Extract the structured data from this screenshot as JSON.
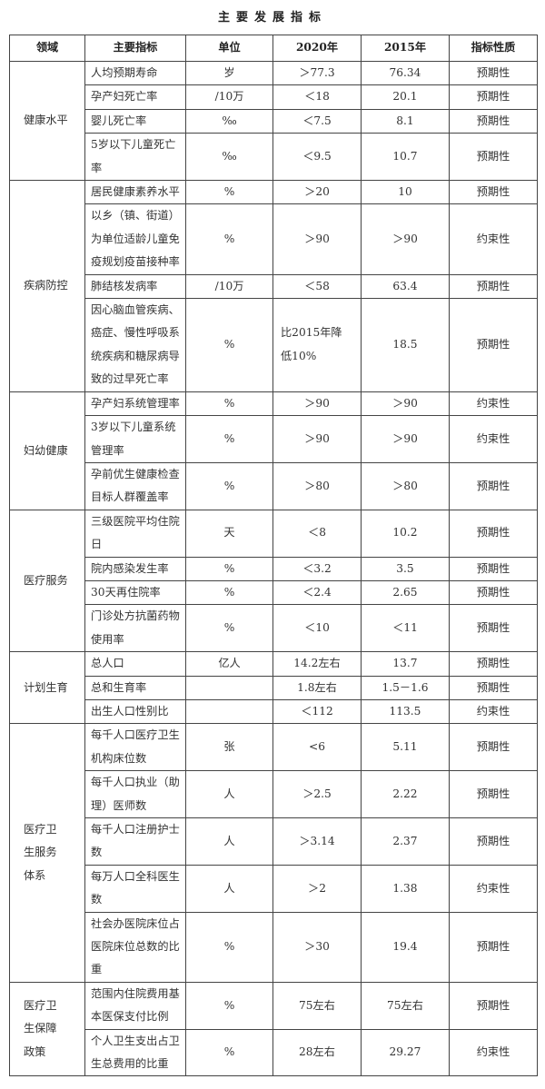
{
  "title": "主要发展指标",
  "headers": [
    "领域",
    "主要指标",
    "单位",
    "2020年",
    "2015年",
    "指标性质"
  ],
  "groups": [
    {
      "domain": "健康水平",
      "rows": [
        {
          "indicator": "人均预期寿命",
          "unit": "岁",
          "v2020": "＞77.3",
          "v2015": "76.34",
          "nature": "预期性"
        },
        {
          "indicator": "孕产妇死亡率",
          "unit": "/10万",
          "v2020": "＜18",
          "v2015": "20.1",
          "nature": "预期性"
        },
        {
          "indicator": "婴儿死亡率",
          "unit": "‰",
          "v2020": "＜7.5",
          "v2015": "8.1",
          "nature": "预期性"
        },
        {
          "indicator": "5岁以下儿童死亡率",
          "unit": "‰",
          "v2020": "＜9.5",
          "v2015": "10.7",
          "nature": "预期性"
        }
      ]
    },
    {
      "domain": "疾病防控",
      "rows": [
        {
          "indicator": "居民健康素养水平",
          "unit": "%",
          "v2020": "＞20",
          "v2015": "10",
          "nature": "预期性"
        },
        {
          "indicator": "以乡（镇、街道）为单位适龄儿童免疫规划疫苗接种率",
          "unit": "%",
          "v2020": "＞90",
          "v2015": "＞90",
          "nature": "约束性"
        },
        {
          "indicator": "肺结核发病率",
          "unit": "/10万",
          "v2020": "＜58",
          "v2015": "63.4",
          "nature": "预期性"
        },
        {
          "indicator": "因心脑血管疾病、癌症、慢性呼吸系统疾病和糖尿病导致的过早死亡率",
          "unit": "%",
          "v2020": "比2015年降低10%",
          "v2015": "18.5",
          "nature": "预期性"
        }
      ]
    },
    {
      "domain": "妇幼健康",
      "rows": [
        {
          "indicator": "孕产妇系统管理率",
          "unit": "%",
          "v2020": "＞90",
          "v2015": "＞90",
          "nature": "约束性"
        },
        {
          "indicator": "3岁以下儿童系统管理率",
          "unit": "%",
          "v2020": "＞90",
          "v2015": "＞90",
          "nature": "约束性"
        },
        {
          "indicator": "孕前优生健康检查目标人群覆盖率",
          "unit": "%",
          "v2020": "＞80",
          "v2015": "＞80",
          "nature": "预期性"
        }
      ]
    },
    {
      "domain": "医疗服务",
      "rows": [
        {
          "indicator": "三级医院平均住院日",
          "unit": "天",
          "v2020": "＜8",
          "v2015": "10.2",
          "nature": "预期性"
        },
        {
          "indicator": "院内感染发生率",
          "unit": "%",
          "v2020": "＜3.2",
          "v2015": "3.5",
          "nature": "预期性"
        },
        {
          "indicator": "30天再住院率",
          "unit": "%",
          "v2020": "＜2.4",
          "v2015": "2.65",
          "nature": "预期性"
        },
        {
          "indicator": "门诊处方抗菌药物使用率",
          "unit": "%",
          "v2020": "＜10",
          "v2015": "＜11",
          "nature": "预期性"
        }
      ]
    },
    {
      "domain": "计划生育",
      "rows": [
        {
          "indicator": "总人口",
          "unit": "亿人",
          "v2020": "14.2左右",
          "v2015": "13.7",
          "nature": "预期性"
        },
        {
          "indicator": "总和生育率",
          "unit": "",
          "v2020": "1.8左右",
          "v2015": "1.5－1.6",
          "nature": "预期性"
        },
        {
          "indicator": "出生人口性别比",
          "unit": "",
          "v2020": "＜112",
          "v2015": "113.5",
          "nature": "约束性"
        }
      ]
    },
    {
      "domain": "医疗卫生服务体系",
      "rows": [
        {
          "indicator": "每千人口医疗卫生机构床位数",
          "unit": "张",
          "v2020": "<6",
          "v2015": "5.11",
          "nature": "预期性"
        },
        {
          "indicator": "每千人口执业（助理）医师数",
          "unit": "人",
          "v2020": "＞2.5",
          "v2015": "2.22",
          "nature": "预期性"
        },
        {
          "indicator": "每千人口注册护士数",
          "unit": "人",
          "v2020": "＞3.14",
          "v2015": "2.37",
          "nature": "预期性"
        },
        {
          "indicator": "每万人口全科医生数",
          "unit": "人",
          "v2020": "＞2",
          "v2015": "1.38",
          "nature": "约束性"
        },
        {
          "indicator": "社会办医院床位占医院床位总数的比重",
          "unit": "%",
          "v2020": "＞30",
          "v2015": "19.4",
          "nature": "预期性"
        }
      ]
    },
    {
      "domain": "医疗卫生保障政策",
      "rows": [
        {
          "indicator": "范围内住院费用基本医保支付比例",
          "unit": "%",
          "v2020": "75左右",
          "v2015": "75左右",
          "nature": "预期性"
        },
        {
          "indicator": "个人卫生支出占卫生总费用的比重",
          "unit": "%",
          "v2020": "28左右",
          "v2015": "29.27",
          "nature": "约束性"
        }
      ]
    }
  ]
}
